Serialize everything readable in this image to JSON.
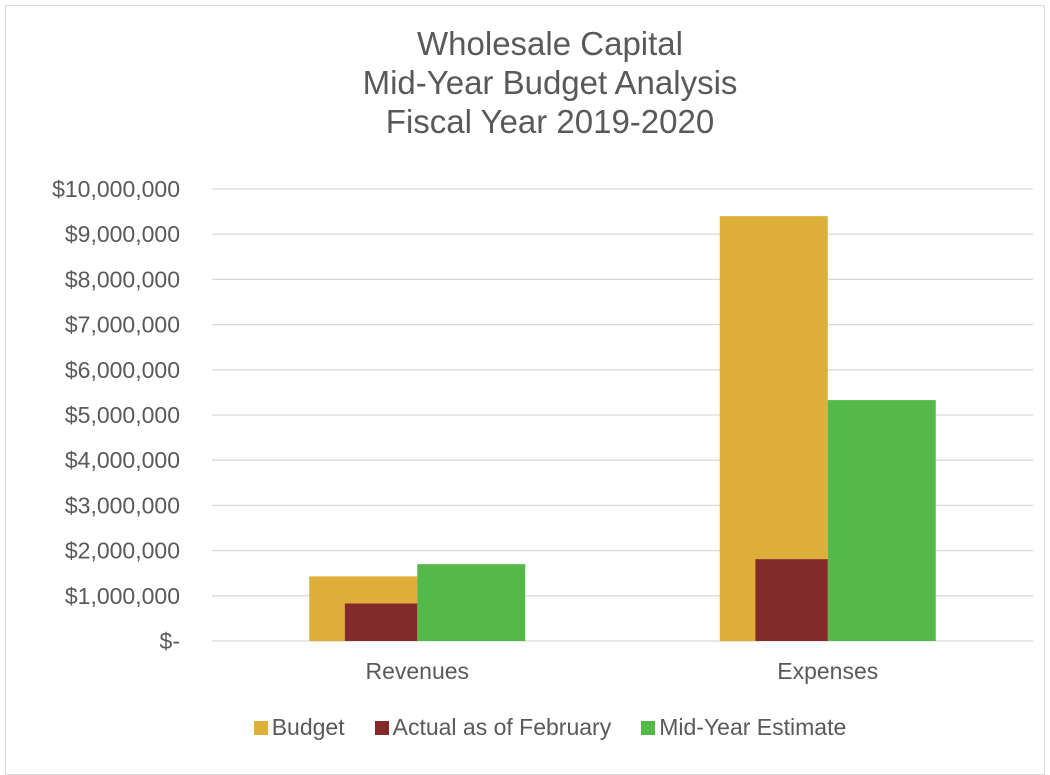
{
  "chart_data": {
    "type": "bar",
    "title_lines": [
      "Wholesale Capital",
      "Mid-Year Budget Analysis",
      "Fiscal Year 2019-2020"
    ],
    "categories": [
      "Revenues",
      "Expenses"
    ],
    "series": [
      {
        "name": "Budget",
        "color": "#DDAE3A",
        "values": [
          1430000,
          9400000
        ]
      },
      {
        "name": "Actual as of February",
        "color": "#832A2A",
        "values": [
          830000,
          1810000
        ]
      },
      {
        "name": "Mid-Year Estimate",
        "color": "#55B94A",
        "values": [
          1700000,
          5330000
        ]
      }
    ],
    "ylim": [
      0,
      10000000
    ],
    "yticks": [
      {
        "value": 10000000,
        "label": "$10,000,000"
      },
      {
        "value": 9000000,
        "label": "$9,000,000"
      },
      {
        "value": 8000000,
        "label": "$8,000,000"
      },
      {
        "value": 7000000,
        "label": "$7,000,000"
      },
      {
        "value": 6000000,
        "label": "$6,000,000"
      },
      {
        "value": 5000000,
        "label": "$5,000,000"
      },
      {
        "value": 4000000,
        "label": "$4,000,000"
      },
      {
        "value": 3000000,
        "label": "$3,000,000"
      },
      {
        "value": 2000000,
        "label": "$2,000,000"
      },
      {
        "value": 1000000,
        "label": "$1,000,000"
      },
      {
        "value": 0,
        "label": "$-"
      }
    ],
    "grid": true,
    "legend_position": "bottom",
    "gridline_color": "#d9d9d9"
  }
}
